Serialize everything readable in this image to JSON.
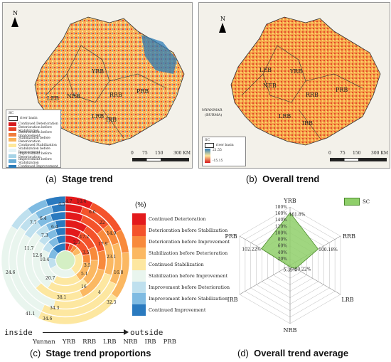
{
  "panel_a": {
    "caption_letter": "(a)",
    "caption_title": "Stage trend",
    "north": "N",
    "regions": [
      "YRB",
      "RRB",
      "NRB",
      "LRB",
      "IRB",
      "PRB",
      "LEB"
    ],
    "legend_title": "SC",
    "legend_items": [
      {
        "label": "river basin",
        "color": "#ffffff"
      },
      {
        "label": "Continued Deterioration",
        "color": "#d7191c"
      },
      {
        "label": "Deterioration before Stabilization",
        "color": "#e8452a"
      },
      {
        "label": "Deterioration before Improvement",
        "color": "#f07c3c"
      },
      {
        "label": "Stabilization before Deterioration",
        "color": "#f8b35a"
      },
      {
        "label": "Continued Stabilization",
        "color": "#fee89b"
      },
      {
        "label": "Stabilization before Improvement",
        "color": "#e6f4f7"
      },
      {
        "label": "Improvement before Deterioration",
        "color": "#a6d3e6"
      },
      {
        "label": "Improvement before Stabilization",
        "color": "#6aaed6"
      },
      {
        "label": "Continued Improvement",
        "color": "#2c7bb6"
      }
    ],
    "scale": {
      "ticks": [
        "0",
        "75",
        "150",
        "300 KM"
      ]
    }
  },
  "panel_b": {
    "caption_letter": "(b)",
    "caption_title": "Overall trend",
    "north": "N",
    "regions": [
      "LEB",
      "NEB",
      "YRB",
      "RRB",
      "LRB",
      "IRB",
      "PRB"
    ],
    "country_label_1": "MYANMAR",
    "country_label_2": "(BURMA)",
    "legend_title": "SC",
    "legend_river": "river basin",
    "legend_max": "21.55",
    "legend_min": "-15.15",
    "scale": {
      "ticks": [
        "0",
        "75",
        "150",
        "300 KM"
      ]
    }
  },
  "panel_c": {
    "caption_letter": "(c)",
    "caption_title": "Stage trend proportions",
    "pct_header": "(%)",
    "inside_label": "inside",
    "outside_label": "outside",
    "ring_order": [
      "Yunnan",
      "YRB",
      "RRB",
      "LRB",
      "NRB",
      "IRB",
      "PRB"
    ],
    "category_legend": [
      {
        "label": "Continued Deterioration",
        "color": "#e31a1c"
      },
      {
        "label": "Deterioration before Stabilization",
        "color": "#f4532b"
      },
      {
        "label": "Deterioration before Improvement",
        "color": "#f88a3c"
      },
      {
        "label": "Stabilization before Deterioration",
        "color": "#fbb862"
      },
      {
        "label": "Continued Stabilization",
        "color": "#fde7a0"
      },
      {
        "label": "Stabilization before Improvement",
        "color": "#e9f5ee"
      },
      {
        "label": "Improvement before Deterioration",
        "color": "#bfe0ee"
      },
      {
        "label": "Improvement before Stabilization",
        "color": "#7fbbe2"
      },
      {
        "label": "Continued Improvement",
        "color": "#2a7abf"
      }
    ],
    "ring_labels": [
      "10.4",
      "4.7",
      "4.5",
      "6.6",
      "22",
      "14.9",
      "17.2",
      "2.3",
      "17.9",
      "23.1",
      "16.8",
      "3.5",
      "3.5",
      "5.1",
      "16",
      "4",
      "32.3",
      "38.1",
      "34.3",
      "20.7",
      "34.6",
      "41.1",
      "24.6",
      "11.7",
      "12.6",
      "10.4",
      "7.7",
      "6.4",
      "6.4",
      "7.3"
    ]
  },
  "panel_d": {
    "caption_letter": "(d)",
    "caption_title": "Overall trend average",
    "legend_label": "SC",
    "chart_data": {
      "type": "radar",
      "axes": [
        "YRB",
        "RRB",
        "LRB",
        "NRB",
        "IRB",
        "PRB"
      ],
      "series": [
        {
          "name": "SC",
          "values": [
            161.8,
            100.18,
            20.22,
            5.39,
            5.0,
            102.22
          ]
        }
      ],
      "value_labels": [
        "161.8%",
        "100.18%",
        "20.22%",
        "5.39%",
        "",
        "102.22%"
      ],
      "tick_labels": [
        "0",
        "20%",
        "40%",
        "60%",
        "80%",
        "100%",
        "120%",
        "140%",
        "160%",
        "180%"
      ],
      "range": [
        0,
        180
      ]
    }
  }
}
